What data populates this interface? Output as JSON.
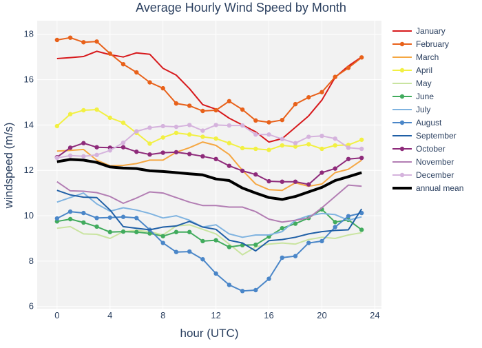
{
  "chart_data": {
    "type": "line",
    "title": "Average Hourly Wind Speed by Month",
    "xlabel": "hour (UTC)",
    "ylabel": "windspeed (m/s)",
    "xlim": [
      -1.5,
      24.5
    ],
    "ylim": [
      5.9,
      18.6
    ],
    "xticks": [
      0,
      4,
      8,
      12,
      16,
      20,
      24
    ],
    "yticks": [
      6,
      8,
      10,
      12,
      14,
      16,
      18
    ],
    "grid": true,
    "plot_background": "#f2f2f2",
    "legend_position": "right",
    "x": [
      0,
      1,
      2,
      3,
      4,
      5,
      6,
      7,
      8,
      9,
      10,
      11,
      12,
      13,
      14,
      15,
      16,
      17,
      18,
      19,
      20,
      21,
      22,
      23
    ],
    "series": [
      {
        "name": "January",
        "color": "#d7191c",
        "markers": false,
        "width": 2,
        "values": [
          16.93,
          16.97,
          17.02,
          17.25,
          17.1,
          17.0,
          17.18,
          17.12,
          16.5,
          16.2,
          15.6,
          14.9,
          14.7,
          14.3,
          14.0,
          13.7,
          13.25,
          13.4,
          13.9,
          14.4,
          15.1,
          16.1,
          16.6,
          17.0
        ]
      },
      {
        "name": "February",
        "color": "#e8611a",
        "markers": true,
        "width": 2,
        "values": [
          17.75,
          17.85,
          17.65,
          17.68,
          17.15,
          16.68,
          16.32,
          15.88,
          15.62,
          14.95,
          14.85,
          14.62,
          14.65,
          15.05,
          14.68,
          14.2,
          14.12,
          14.22,
          14.92,
          15.22,
          15.45,
          16.12,
          16.52,
          16.98
        ]
      },
      {
        "name": "March",
        "color": "#f5a742",
        "markers": false,
        "width": 2,
        "values": [
          12.85,
          12.88,
          12.92,
          12.45,
          12.2,
          12.22,
          12.3,
          12.45,
          12.45,
          12.8,
          13.0,
          13.25,
          13.1,
          12.7,
          12.0,
          11.4,
          11.15,
          11.12,
          11.45,
          11.3,
          11.4,
          11.9,
          12.05,
          12.45
        ]
      },
      {
        "name": "April",
        "color": "#f2f042",
        "markers": true,
        "width": 2,
        "values": [
          13.95,
          14.48,
          14.65,
          14.68,
          14.32,
          14.1,
          13.65,
          13.18,
          13.45,
          13.65,
          13.58,
          13.48,
          13.4,
          13.2,
          12.98,
          12.95,
          12.9,
          13.1,
          13.05,
          13.15,
          12.95,
          13.1,
          13.12,
          13.35
        ]
      },
      {
        "name": "May",
        "color": "#c9e4a0",
        "markers": false,
        "width": 2,
        "values": [
          9.45,
          9.52,
          9.2,
          9.18,
          9.0,
          9.3,
          9.35,
          9.3,
          9.15,
          9.55,
          9.6,
          9.4,
          9.2,
          8.75,
          8.28,
          8.62,
          8.75,
          8.8,
          8.75,
          8.95,
          9.05,
          9.0,
          9.15,
          9.25
        ]
      },
      {
        "name": "June",
        "color": "#41ab5d",
        "markers": true,
        "width": 2,
        "values": [
          9.75,
          9.85,
          9.7,
          9.52,
          9.28,
          9.3,
          9.28,
          9.22,
          9.1,
          9.28,
          9.28,
          8.88,
          8.92,
          8.62,
          8.7,
          8.72,
          9.08,
          9.45,
          9.65,
          9.9,
          10.28,
          9.72,
          9.82,
          9.38
        ]
      },
      {
        "name": "July",
        "color": "#7fb3e0",
        "markers": false,
        "width": 2,
        "values": [
          10.6,
          10.8,
          11.0,
          10.52,
          10.2,
          10.35,
          10.25,
          10.1,
          9.9,
          10.0,
          9.8,
          9.5,
          9.6,
          9.2,
          9.05,
          9.15,
          9.15,
          9.3,
          9.8,
          10.0,
          10.1,
          10.05,
          9.8,
          9.95
        ]
      },
      {
        "name": "August",
        "color": "#4a86c8",
        "markers": true,
        "width": 2,
        "values": [
          9.88,
          10.18,
          10.12,
          9.9,
          9.92,
          9.95,
          9.9,
          9.38,
          8.8,
          8.4,
          8.42,
          8.08,
          7.45,
          6.95,
          6.68,
          6.72,
          7.22,
          8.15,
          8.22,
          8.8,
          8.88,
          9.5,
          9.98,
          10.12
        ]
      },
      {
        "name": "September",
        "color": "#1f5fa6",
        "markers": false,
        "width": 2,
        "values": [
          11.12,
          10.92,
          10.82,
          10.8,
          10.25,
          9.52,
          9.45,
          9.38,
          9.5,
          9.55,
          9.75,
          9.5,
          9.4,
          8.92,
          8.8,
          8.45,
          8.9,
          8.95,
          9.05,
          9.2,
          9.3,
          9.35,
          9.38,
          10.3
        ]
      },
      {
        "name": "October",
        "color": "#8e2a7a",
        "markers": true,
        "width": 2,
        "values": [
          12.58,
          13.0,
          13.2,
          13.02,
          13.0,
          13.02,
          12.82,
          12.7,
          12.78,
          12.8,
          12.72,
          12.62,
          12.5,
          12.2,
          11.98,
          11.82,
          11.52,
          11.5,
          11.5,
          11.38,
          11.9,
          12.08,
          12.5,
          12.55
        ]
      },
      {
        "name": "November",
        "color": "#b27db3",
        "markers": false,
        "width": 2,
        "values": [
          11.5,
          11.1,
          11.08,
          11.02,
          10.85,
          10.55,
          10.78,
          11.05,
          11.0,
          10.8,
          10.6,
          10.45,
          10.45,
          10.38,
          10.38,
          10.18,
          9.85,
          9.72,
          9.8,
          9.9,
          10.35,
          10.85,
          11.35,
          11.3
        ]
      },
      {
        "name": "December",
        "color": "#d5b3dd",
        "markers": true,
        "width": 2,
        "values": [
          12.55,
          12.65,
          12.62,
          12.68,
          12.88,
          13.22,
          13.72,
          13.88,
          13.95,
          13.92,
          14.0,
          13.75,
          14.0,
          13.98,
          13.98,
          13.58,
          13.58,
          13.38,
          13.2,
          13.48,
          13.52,
          13.4,
          13.0,
          12.95
        ]
      },
      {
        "name": "annual mean",
        "color": "#000000",
        "markers": false,
        "width": 4,
        "values": [
          12.38,
          12.48,
          12.45,
          12.35,
          12.15,
          12.1,
          12.08,
          11.98,
          11.95,
          11.9,
          11.85,
          11.8,
          11.62,
          11.55,
          11.22,
          11.0,
          10.8,
          10.72,
          10.85,
          11.05,
          11.25,
          11.55,
          11.72,
          11.9
        ]
      }
    ]
  }
}
